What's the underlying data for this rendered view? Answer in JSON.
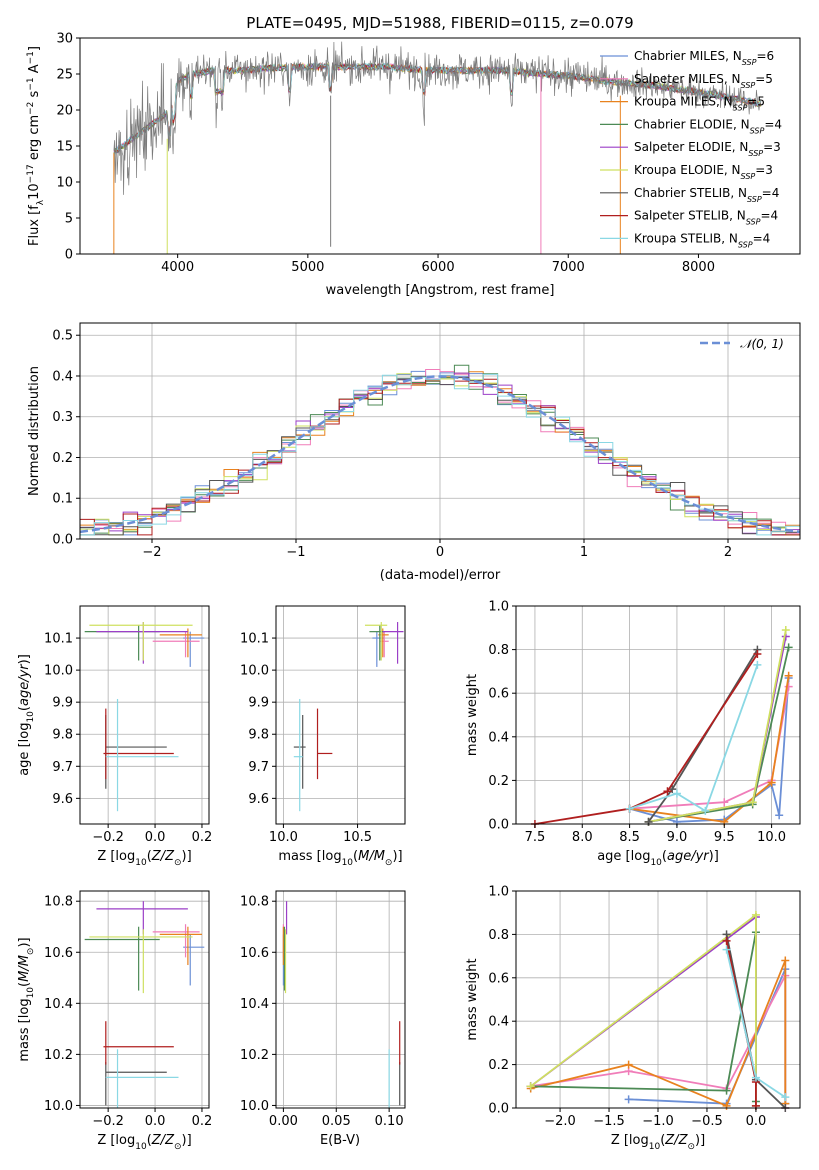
{
  "figure_title": "PLATE=0495, MJD=51988, FIBERID=0115, z=0.079",
  "colors": {
    "Chabrier MILES": "#6b8fd6",
    "Salpeter MILES": "#f07db9",
    "Kroupa MILES": "#e8821e",
    "Chabrier ELODIE": "#4c8a55",
    "Salpeter ELODIE": "#9b3fc7",
    "Kroupa ELODIE": "#cfe060",
    "Chabrier STELIB": "#555555",
    "Salpeter STELIB": "#b01f1f",
    "Kroupa STELIB": "#8ad8e4",
    "normal_fit": "#6b8fd6"
  },
  "chart_data": [
    {
      "id": "spectrum",
      "type": "line",
      "title": "PLATE=0495, MJD=51988, FIBERID=0115, z=0.079",
      "xlabel": "wavelength [Angstrom, rest frame]",
      "ylabel": "Flux [f_λ10^-17 erg cm^-2 s^-1 A^-1]",
      "xlim": [
        3250,
        8780
      ],
      "ylim": [
        0,
        30
      ],
      "xticks": [
        "4000",
        "5000",
        "6000",
        "7000",
        "8000"
      ],
      "yticks": [
        "0",
        "5",
        "10",
        "15",
        "20",
        "25",
        "30"
      ],
      "grid": false,
      "legend_position": "top-right",
      "legend": [
        {
          "name": "Chabrier MILES",
          "nssp": "6"
        },
        {
          "name": "Salpeter MILES",
          "nssp": "5"
        },
        {
          "name": "Kroupa MILES",
          "nssp": "5"
        },
        {
          "name": "Chabrier ELODIE",
          "nssp": "4"
        },
        {
          "name": "Salpeter ELODIE",
          "nssp": "3"
        },
        {
          "name": "Kroupa ELODIE",
          "nssp": "3"
        },
        {
          "name": "Chabrier STELIB",
          "nssp": "4"
        },
        {
          "name": "Salpeter STELIB",
          "nssp": "4"
        },
        {
          "name": "Kroupa STELIB",
          "nssp": "4"
        }
      ],
      "continuum": {
        "x": [
          3500,
          3650,
          3800,
          3950,
          4000,
          4100,
          4300,
          4500,
          4700,
          5000,
          5300,
          5600,
          5900,
          6200,
          6500,
          6800,
          7000,
          7300,
          7600,
          8000,
          8300,
          8500
        ],
        "y": [
          14,
          16,
          18,
          20,
          24,
          25,
          25.5,
          25.5,
          25.8,
          26,
          26,
          26,
          25.5,
          25.5,
          25.5,
          25,
          24.8,
          24,
          23.5,
          22.5,
          21.5,
          20.8
        ]
      }
    },
    {
      "id": "residuals",
      "type": "step",
      "xlabel": "(data-model)/error",
      "ylabel": "Normed distribution",
      "xlim": [
        -2.5,
        2.5
      ],
      "ylim": [
        0,
        0.53
      ],
      "xticks": [
        "−2",
        "−1",
        "0",
        "1",
        "2"
      ],
      "yticks": [
        "0.0",
        "0.1",
        "0.2",
        "0.3",
        "0.4",
        "0.5"
      ],
      "grid": true,
      "legend_position": "top-right",
      "legend": [
        {
          "name": "𝒩(0, 1)",
          "style": "dashed"
        }
      ],
      "bin_width": 0.1,
      "bins_from": -2.5
    },
    {
      "id": "Z_vs_age",
      "type": "errorbar",
      "xlabel": "Z [log10(Z/Z☉)]",
      "ylabel": "age  [log10(age/yr)]",
      "xlim": [
        -0.32,
        0.23
      ],
      "ylim": [
        9.52,
        10.2
      ],
      "xticks": [
        "−0.2",
        "0.0",
        "0.2"
      ],
      "yticks": [
        "9.6",
        "9.7",
        "9.8",
        "9.9",
        "10.0",
        "10.1"
      ],
      "grid": true,
      "points": [
        {
          "name": "Chabrier MILES",
          "x": 0.15,
          "xerr": [
            0.03,
            0.06
          ],
          "y": 10.1,
          "yerr": [
            0.09,
            0.02
          ]
        },
        {
          "name": "Salpeter MILES",
          "x": 0.13,
          "xerr": [
            0.14,
            0.06
          ],
          "y": 10.09,
          "yerr": [
            0.05,
            0.03
          ]
        },
        {
          "name": "Kroupa MILES",
          "x": 0.14,
          "xerr": [
            0.12,
            0.06
          ],
          "y": 10.11,
          "yerr": [
            0.07,
            0.02
          ]
        },
        {
          "name": "Chabrier ELODIE",
          "x": -0.07,
          "xerr": [
            0.23,
            0.09
          ],
          "y": 10.12,
          "yerr": [
            0.09,
            0.02
          ]
        },
        {
          "name": "Salpeter ELODIE",
          "x": -0.05,
          "xerr": [
            0.2,
            0.19
          ],
          "y": 10.12,
          "yerr": [
            0.1,
            0.03
          ]
        },
        {
          "name": "Kroupa ELODIE",
          "x": -0.05,
          "xerr": [
            0.23,
            0.21
          ],
          "y": 10.14,
          "yerr": [
            0.11,
            0.01
          ]
        },
        {
          "name": "Chabrier STELIB",
          "x": -0.21,
          "xerr": [
            0.0,
            0.26
          ],
          "y": 9.76,
          "yerr": [
            0.13,
            0.1
          ]
        },
        {
          "name": "Salpeter STELIB",
          "x": -0.21,
          "xerr": [
            0.01,
            0.29
          ],
          "y": 9.74,
          "yerr": [
            0.08,
            0.14
          ]
        },
        {
          "name": "Kroupa STELIB",
          "x": -0.16,
          "xerr": [
            0.05,
            0.26
          ],
          "y": 9.73,
          "yerr": [
            0.17,
            0.18
          ]
        }
      ]
    },
    {
      "id": "mass_vs_age",
      "type": "errorbar",
      "xlabel": "mass [log10(M/M☉)]",
      "ylabel": "",
      "xlim": [
        9.95,
        10.82
      ],
      "ylim": [
        9.52,
        10.2
      ],
      "xticks": [
        "10.0",
        "10.5"
      ],
      "yticks": [
        "9.6",
        "9.7",
        "9.8",
        "9.9",
        "10.0",
        "10.1"
      ],
      "grid": true,
      "points": [
        {
          "name": "Chabrier MILES",
          "x": 10.63,
          "xerr": [
            0.03,
            0.05
          ],
          "y": 10.1,
          "yerr": [
            0.09,
            0.02
          ]
        },
        {
          "name": "Salpeter MILES",
          "x": 10.68,
          "xerr": [
            0.03,
            0.03
          ],
          "y": 10.09,
          "yerr": [
            0.05,
            0.03
          ]
        },
        {
          "name": "Kroupa MILES",
          "x": 10.67,
          "xerr": [
            0.03,
            0.04
          ],
          "y": 10.11,
          "yerr": [
            0.07,
            0.02
          ]
        },
        {
          "name": "Chabrier ELODIE",
          "x": 10.65,
          "xerr": [
            0.07,
            0.03
          ],
          "y": 10.12,
          "yerr": [
            0.09,
            0.02
          ]
        },
        {
          "name": "Salpeter ELODIE",
          "x": 10.77,
          "xerr": [
            0.1,
            0.04
          ],
          "y": 10.12,
          "yerr": [
            0.1,
            0.03
          ]
        },
        {
          "name": "Kroupa ELODIE",
          "x": 10.66,
          "xerr": [
            0.11,
            0.04
          ],
          "y": 10.14,
          "yerr": [
            0.11,
            0.01
          ]
        },
        {
          "name": "Chabrier STELIB",
          "x": 10.13,
          "xerr": [
            0.06,
            0.02
          ],
          "y": 9.76,
          "yerr": [
            0.13,
            0.1
          ]
        },
        {
          "name": "Salpeter STELIB",
          "x": 10.23,
          "xerr": [
            0.0,
            0.1
          ],
          "y": 9.74,
          "yerr": [
            0.08,
            0.14
          ]
        },
        {
          "name": "Kroupa STELIB",
          "x": 10.11,
          "xerr": [
            0.04,
            0.02
          ],
          "y": 9.73,
          "yerr": [
            0.17,
            0.18
          ]
        }
      ]
    },
    {
      "id": "age_vs_massweight",
      "type": "line",
      "xlabel": "age  [log10(age/yr)]",
      "ylabel": "mass weight",
      "xlim": [
        7.3,
        10.3
      ],
      "ylim": [
        0,
        1
      ],
      "xticks": [
        "7.5",
        "8.0",
        "8.5",
        "9.0",
        "9.5",
        "10.0"
      ],
      "yticks": [
        "0.0",
        "0.2",
        "0.4",
        "0.6",
        "0.8",
        "1.0"
      ],
      "grid": true,
      "series": [
        {
          "name": "Chabrier MILES",
          "x": [
            8.5,
            9.0,
            9.5,
            10.0,
            10.08,
            10.18
          ],
          "y": [
            0.07,
            0.01,
            0.02,
            0.18,
            0.04,
            0.67
          ]
        },
        {
          "name": "Salpeter MILES",
          "x": [
            8.5,
            9.5,
            10.0,
            10.18
          ],
          "y": [
            0.07,
            0.1,
            0.2,
            0.63
          ]
        },
        {
          "name": "Kroupa MILES",
          "x": [
            8.5,
            9.5,
            10.0,
            10.18
          ],
          "y": [
            0.07,
            0.01,
            0.19,
            0.68
          ]
        },
        {
          "name": "Chabrier ELODIE",
          "x": [
            8.7,
            9.8,
            10.18
          ],
          "y": [
            0.01,
            0.09,
            0.81
          ]
        },
        {
          "name": "Salpeter ELODIE",
          "x": [
            8.7,
            9.8,
            10.15
          ],
          "y": [
            0.01,
            0.1,
            0.86
          ]
        },
        {
          "name": "Kroupa ELODIE",
          "x": [
            8.7,
            9.8,
            10.15
          ],
          "y": [
            0.01,
            0.1,
            0.89
          ]
        },
        {
          "name": "Chabrier STELIB",
          "x": [
            8.7,
            8.95,
            9.85
          ],
          "y": [
            0.01,
            0.16,
            0.8
          ]
        },
        {
          "name": "Salpeter STELIB",
          "x": [
            7.5,
            8.5,
            8.9,
            9.85
          ],
          "y": [
            0.0,
            0.07,
            0.15,
            0.78
          ]
        },
        {
          "name": "Kroupa STELIB",
          "x": [
            8.5,
            9.0,
            9.3,
            9.85
          ],
          "y": [
            0.07,
            0.14,
            0.06,
            0.73
          ]
        }
      ]
    },
    {
      "id": "Z_vs_mass",
      "type": "errorbar",
      "xlabel": "Z [log10(Z/Z☉)]",
      "ylabel": "mass [log10(M/M☉)]",
      "xlim": [
        -0.32,
        0.23
      ],
      "ylim": [
        9.99,
        10.84
      ],
      "xticks": [
        "−0.2",
        "0.0",
        "0.2"
      ],
      "yticks": [
        "10.0",
        "10.2",
        "10.4",
        "10.6",
        "10.8"
      ],
      "grid": true,
      "points": [
        {
          "name": "Chabrier MILES",
          "x": 0.15,
          "xerr": [
            0.03,
            0.06
          ],
          "y": 10.62,
          "yerr": [
            0.15,
            0.05
          ]
        },
        {
          "name": "Salpeter MILES",
          "x": 0.13,
          "xerr": [
            0.14,
            0.06
          ],
          "y": 10.68,
          "yerr": [
            0.1,
            0.03
          ]
        },
        {
          "name": "Kroupa MILES",
          "x": 0.14,
          "xerr": [
            0.12,
            0.06
          ],
          "y": 10.67,
          "yerr": [
            0.12,
            0.03
          ]
        },
        {
          "name": "Chabrier ELODIE",
          "x": -0.07,
          "xerr": [
            0.23,
            0.09
          ],
          "y": 10.65,
          "yerr": [
            0.2,
            0.05
          ]
        },
        {
          "name": "Salpeter ELODIE",
          "x": -0.05,
          "xerr": [
            0.2,
            0.19
          ],
          "y": 10.77,
          "yerr": [
            0.1,
            0.03
          ]
        },
        {
          "name": "Kroupa ELODIE",
          "x": -0.05,
          "xerr": [
            0.23,
            0.21
          ],
          "y": 10.66,
          "yerr": [
            0.22,
            0.03
          ]
        },
        {
          "name": "Chabrier STELIB",
          "x": -0.21,
          "xerr": [
            0.0,
            0.26
          ],
          "y": 10.13,
          "yerr": [
            0.13,
            0.04
          ]
        },
        {
          "name": "Salpeter STELIB",
          "x": -0.21,
          "xerr": [
            0.01,
            0.29
          ],
          "y": 10.23,
          "yerr": [
            0.07,
            0.1
          ]
        },
        {
          "name": "Kroupa STELIB",
          "x": -0.16,
          "xerr": [
            0.05,
            0.26
          ],
          "y": 10.11,
          "yerr": [
            0.12,
            0.11
          ]
        }
      ]
    },
    {
      "id": "ebv_vs_mass",
      "type": "errorbar",
      "xlabel": "E(B-V)",
      "ylabel": "",
      "xlim": [
        -0.007,
        0.115
      ],
      "ylim": [
        9.99,
        10.84
      ],
      "xticks": [
        "0.00",
        "0.05",
        "0.10"
      ],
      "yticks": [
        "10.0",
        "10.2",
        "10.4",
        "10.6",
        "10.8"
      ],
      "grid": true,
      "points": [
        {
          "name": "Chabrier MILES",
          "x": 0.0,
          "y": 10.62,
          "yerr": [
            0.15,
            0.05
          ]
        },
        {
          "name": "Salpeter MILES",
          "x": 0.0,
          "y": 10.68,
          "yerr": [
            0.1,
            0.03
          ]
        },
        {
          "name": "Kroupa MILES",
          "x": 0.0,
          "y": 10.67,
          "yerr": [
            0.12,
            0.03
          ]
        },
        {
          "name": "Chabrier ELODIE",
          "x": 0.001,
          "y": 10.65,
          "yerr": [
            0.2,
            0.05
          ]
        },
        {
          "name": "Salpeter ELODIE",
          "x": 0.003,
          "y": 10.77,
          "yerr": [
            0.1,
            0.03
          ]
        },
        {
          "name": "Kroupa ELODIE",
          "x": 0.002,
          "y": 10.66,
          "yerr": [
            0.22,
            0.03
          ]
        },
        {
          "name": "Chabrier STELIB",
          "x": 0.11,
          "y": 10.13,
          "yerr": [
            0.13,
            0.04
          ]
        },
        {
          "name": "Salpeter STELIB",
          "x": 0.11,
          "y": 10.23,
          "yerr": [
            0.07,
            0.1
          ]
        },
        {
          "name": "Kroupa STELIB",
          "x": 0.1,
          "y": 10.11,
          "yerr": [
            0.12,
            0.11
          ]
        }
      ]
    },
    {
      "id": "Z_vs_massweight",
      "type": "line",
      "xlabel": "Z [log10(Z/Z☉)]",
      "ylabel": "mass weight",
      "xlim": [
        -2.45,
        0.45
      ],
      "ylim": [
        0,
        1
      ],
      "xticks": [
        "−2.0",
        "−1.5",
        "−1.0",
        "−0.5",
        "0.0"
      ],
      "yticks": [
        "0.0",
        "0.2",
        "0.4",
        "0.6",
        "0.8",
        "1.0"
      ],
      "grid": true,
      "series": [
        {
          "name": "Chabrier MILES",
          "x": [
            -1.3,
            -0.3,
            0.3,
            0.3
          ],
          "y": [
            0.04,
            0.02,
            0.64,
            0.02
          ]
        },
        {
          "name": "Salpeter MILES",
          "x": [
            -2.3,
            -1.3,
            -0.3,
            0.3,
            0.3
          ],
          "y": [
            0.1,
            0.17,
            0.09,
            0.61,
            0.0
          ]
        },
        {
          "name": "Kroupa MILES",
          "x": [
            -2.3,
            -1.3,
            -0.3,
            0.3,
            0.3
          ],
          "y": [
            0.09,
            0.2,
            0.01,
            0.68,
            0.02
          ]
        },
        {
          "name": "Chabrier ELODIE",
          "x": [
            -2.3,
            -0.3,
            0.0,
            0.0
          ],
          "y": [
            0.1,
            0.08,
            0.81,
            0.03
          ]
        },
        {
          "name": "Salpeter ELODIE",
          "x": [
            -2.3,
            0.0,
            0.0
          ],
          "y": [
            0.1,
            0.88,
            0.01
          ]
        },
        {
          "name": "Kroupa ELODIE",
          "x": [
            -2.3,
            0.0,
            0.0
          ],
          "y": [
            0.1,
            0.89,
            0.01
          ]
        },
        {
          "name": "Chabrier STELIB",
          "x": [
            -0.3,
            0.0,
            0.3
          ],
          "y": [
            0.8,
            0.13,
            0.0
          ]
        },
        {
          "name": "Salpeter STELIB",
          "x": [
            -0.3,
            0.0,
            0.0
          ],
          "y": [
            0.77,
            0.12,
            0.01
          ]
        },
        {
          "name": "Kroupa STELIB",
          "x": [
            -0.3,
            0.0,
            0.3
          ],
          "y": [
            0.73,
            0.14,
            0.05
          ]
        }
      ]
    }
  ]
}
